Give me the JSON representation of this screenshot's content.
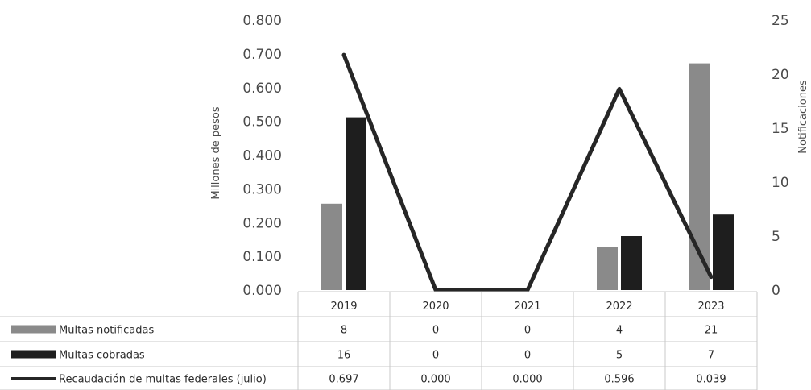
{
  "chart_data": {
    "type": "bar",
    "categories": [
      "2019",
      "2020",
      "2021",
      "2022",
      "2023"
    ],
    "y_left": {
      "label": "Millones de pesos",
      "ticks": [
        "0.000",
        "0.100",
        "0.200",
        "0.300",
        "0.400",
        "0.500",
        "0.600",
        "0.700",
        "0.800"
      ],
      "ylim": [
        0,
        0.8
      ]
    },
    "y_right": {
      "label": "Notificaciones",
      "ticks": [
        "0",
        "5",
        "10",
        "15",
        "20",
        "25"
      ],
      "ylim": [
        0,
        25
      ]
    },
    "series": [
      {
        "name": "Multas notificadas",
        "kind": "bar",
        "axis": "right",
        "color": "#8a8a8a",
        "values": [
          8,
          0,
          0,
          4,
          21
        ],
        "labels": [
          "8",
          "0",
          "0",
          "4",
          "21"
        ]
      },
      {
        "name": "Multas cobradas",
        "kind": "bar",
        "axis": "right",
        "color": "#1e1e1e",
        "values": [
          16,
          0,
          0,
          5,
          7
        ],
        "labels": [
          "16",
          "0",
          "0",
          "5",
          "7"
        ]
      },
      {
        "name": "Recaudación de multas federales (julio)",
        "kind": "line",
        "axis": "left",
        "color": "#262626",
        "values": [
          0.697,
          0.0,
          0.0,
          0.596,
          0.039
        ],
        "labels": [
          "0.697",
          "0.000",
          "0.000",
          "0.596",
          "0.039"
        ]
      }
    ],
    "legend": "data-table-below",
    "grid": false
  }
}
